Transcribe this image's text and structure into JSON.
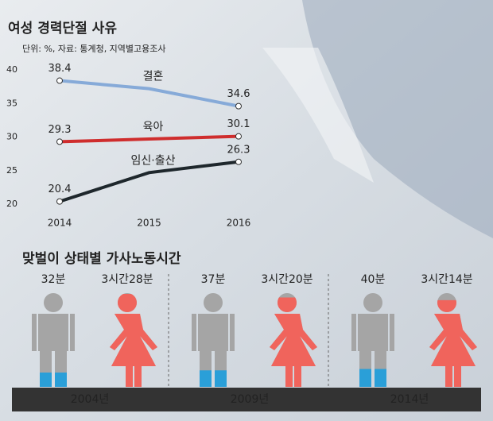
{
  "chart_data": [
    {
      "type": "line",
      "title": "여성 경력단절 사유",
      "subtitle": "단위: %, 자료: 통계청, 지역별고용조사",
      "categories": [
        "2014",
        "2015",
        "2016"
      ],
      "series": [
        {
          "name": "결혼",
          "color": "#86aad8",
          "values": [
            38.4,
            37.2,
            34.6
          ],
          "value_labels": [
            "38.4",
            null,
            "34.6"
          ]
        },
        {
          "name": "육아",
          "color": "#cf2d2d",
          "values": [
            29.3,
            29.7,
            30.1
          ],
          "value_labels": [
            "29.3",
            null,
            "30.1"
          ]
        },
        {
          "name": "임신·출산",
          "color": "#1e272c",
          "values": [
            20.4,
            24.7,
            26.3
          ],
          "value_labels": [
            "20.4",
            null,
            "26.3"
          ]
        }
      ],
      "ylim": [
        20,
        40
      ],
      "yticks": [
        20,
        25,
        30,
        35,
        40
      ],
      "grid": false
    },
    {
      "type": "pictogram",
      "title": "맞벌이 상태별 가사노동시간",
      "categories": [
        "2004년",
        "2009년",
        "2014년"
      ],
      "series": [
        {
          "shape": "man",
          "color": "#2a9fd8",
          "values": [
            32,
            37,
            40
          ],
          "value_labels": [
            "32분",
            "37분",
            "40분"
          ]
        },
        {
          "shape": "woman",
          "color": "#f0645c",
          "values": [
            208,
            200,
            194
          ],
          "value_labels": [
            "3시간28분",
            "3시간20분",
            "3시간14분"
          ]
        }
      ]
    }
  ]
}
